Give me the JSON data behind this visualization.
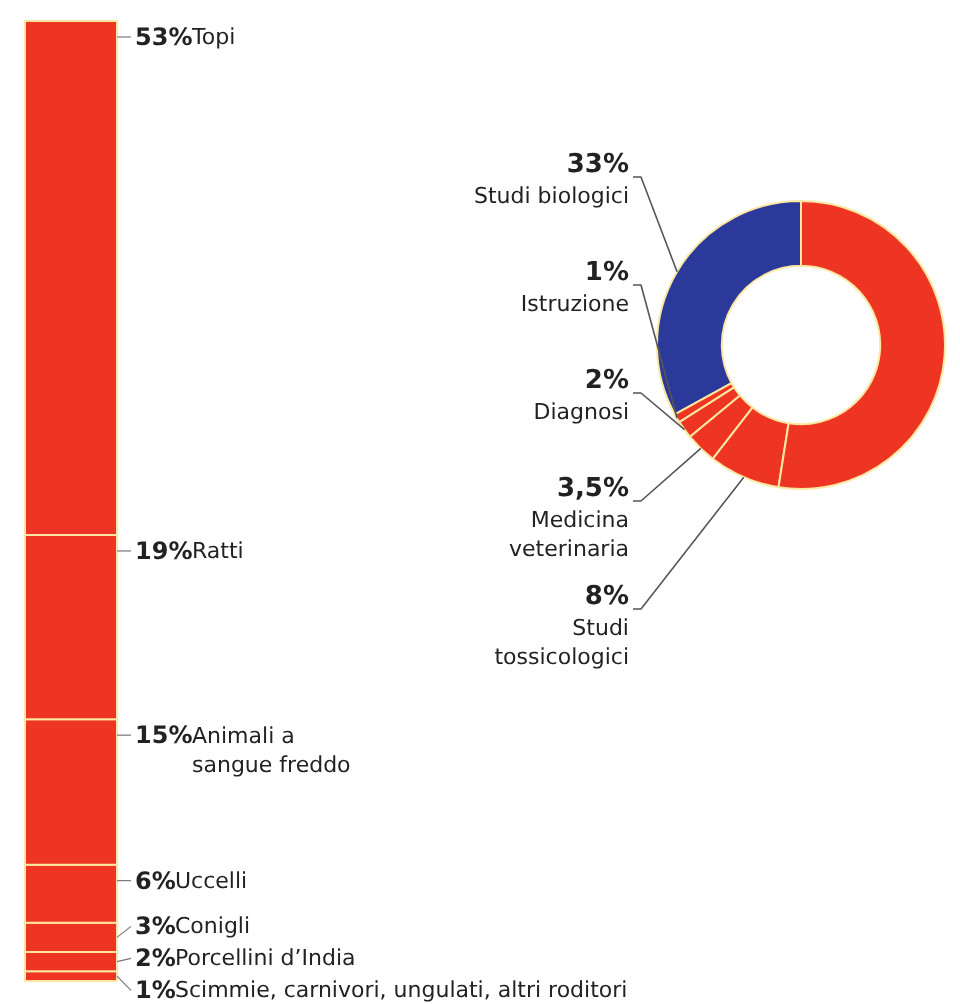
{
  "chart_data": [
    {
      "type": "bar",
      "stacked": true,
      "categories": [
        null
      ],
      "series": [
        {
          "name": "Scimmie, carnivori, ungulati, altri roditori",
          "color": "#ee3524",
          "values": [
            1
          ],
          "value_labels": [
            "1%"
          ]
        },
        {
          "name": "Porcellini d’India",
          "color": "#ee3524",
          "values": [
            2
          ],
          "value_labels": [
            "2%"
          ]
        },
        {
          "name": "Conigli",
          "color": "#ee3524",
          "values": [
            3
          ],
          "value_labels": [
            "3%"
          ]
        },
        {
          "name": "Uccelli",
          "color": "#ee3524",
          "values": [
            6
          ],
          "value_labels": [
            "6%"
          ]
        },
        {
          "name": "Animali a\nsangue freddo",
          "color": "#ee3524",
          "values": [
            15
          ],
          "value_labels": [
            "15%"
          ]
        },
        {
          "name": "Ratti",
          "color": "#ee3524",
          "values": [
            19
          ],
          "value_labels": [
            "19%"
          ]
        },
        {
          "name": "Topi",
          "color": "#ee3524",
          "values": [
            53
          ],
          "value_labels": [
            "53%"
          ]
        }
      ]
    },
    {
      "type": "donut",
      "categories": [
        "Studi biologici",
        "Istruzione",
        "Diagnosi",
        "Medicina\nveterinaria",
        "Studi\ntossicologici",
        null
      ],
      "values": [
        33,
        1,
        2,
        3.5,
        8,
        52.5
      ],
      "value_labels": [
        "33%",
        "1%",
        "2%",
        "3,5%",
        "8%",
        null
      ],
      "colors": [
        "#2b3a9a",
        "#ee3524",
        "#ee3524",
        "#ee3524",
        "#ee3524",
        "#ee3524"
      ]
    }
  ]
}
